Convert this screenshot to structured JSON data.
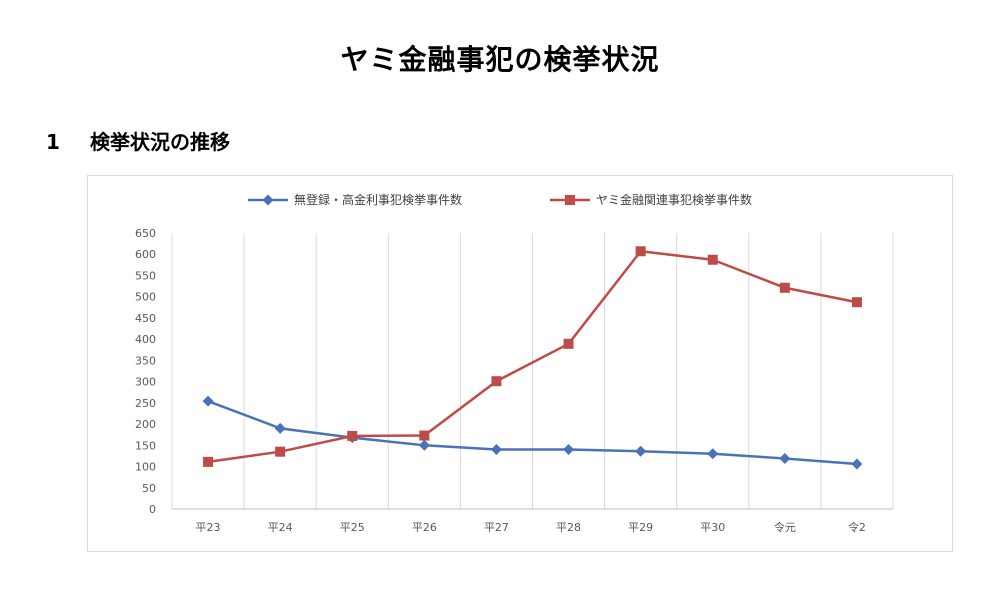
{
  "page": {
    "title": "ヤミ金融事犯の検挙状況",
    "section_number": "1",
    "section_title": "検挙状況の推移"
  },
  "chart_data": {
    "type": "line",
    "categories": [
      "平23",
      "平24",
      "平25",
      "平26",
      "平27",
      "平28",
      "平29",
      "平30",
      "令元",
      "令2"
    ],
    "ylim": [
      0,
      650
    ],
    "yticks": [
      0,
      50,
      100,
      150,
      200,
      250,
      300,
      350,
      400,
      450,
      500,
      550,
      600,
      650
    ],
    "grid": "vertical",
    "legend": "top",
    "series": [
      {
        "name": "無登録・高金利事犯検挙事件数",
        "color": "#4a72b8",
        "marker": "diamond",
        "values": [
          254,
          190,
          168,
          150,
          140,
          140,
          136,
          130,
          119,
          106
        ]
      },
      {
        "name": "ヤミ金融関連事犯検挙事件数",
        "color": "#be4b48",
        "marker": "square",
        "values": [
          111,
          135,
          172,
          173,
          301,
          389,
          607,
          587,
          521,
          487
        ]
      }
    ]
  }
}
